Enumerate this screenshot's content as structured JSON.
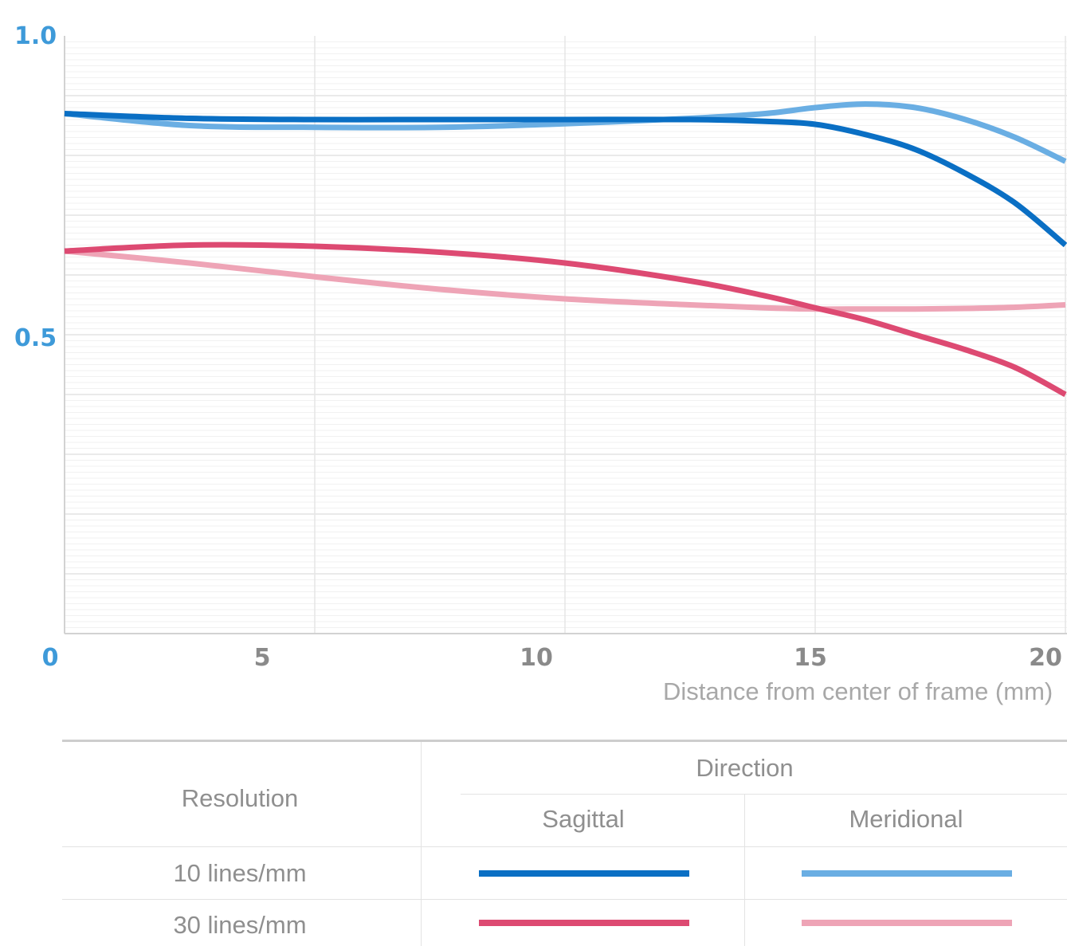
{
  "chart_data": {
    "type": "line",
    "title": "",
    "xlabel": "Distance from center of frame (mm)",
    "ylabel": "",
    "xlim": [
      0,
      20
    ],
    "ylim": [
      0,
      1.0
    ],
    "x_ticks": [
      "0",
      "5",
      "10",
      "15",
      "20"
    ],
    "y_ticks": [
      "0.5",
      "1.0"
    ],
    "x_tick_values": [
      0,
      5,
      10,
      15,
      20
    ],
    "y_tick_values": [
      0.5,
      1.0
    ],
    "grid": true,
    "series": [
      {
        "name": "10 lines/mm Sagittal",
        "color": "#0a6fc4",
        "x": [
          0,
          2.5,
          5,
          7.5,
          10,
          12.5,
          14,
          15,
          16,
          17,
          18,
          19,
          20
        ],
        "y": [
          0.87,
          0.862,
          0.86,
          0.86,
          0.86,
          0.86,
          0.857,
          0.852,
          0.835,
          0.81,
          0.77,
          0.72,
          0.65
        ]
      },
      {
        "name": "10 lines/mm Meridional",
        "color": "#6aaee3",
        "x": [
          0,
          2.5,
          5,
          7.5,
          10,
          12.5,
          14,
          15,
          16,
          17,
          18,
          19,
          20
        ],
        "y": [
          0.87,
          0.85,
          0.847,
          0.847,
          0.853,
          0.862,
          0.87,
          0.88,
          0.886,
          0.88,
          0.86,
          0.83,
          0.79
        ]
      },
      {
        "name": "30 lines/mm Sagittal",
        "color": "#dd4a72",
        "x": [
          0,
          2.5,
          5,
          7.5,
          10,
          12.5,
          14,
          15,
          16,
          17,
          18,
          19,
          20
        ],
        "y": [
          0.64,
          0.65,
          0.648,
          0.638,
          0.62,
          0.59,
          0.565,
          0.545,
          0.525,
          0.5,
          0.475,
          0.445,
          0.4
        ]
      },
      {
        "name": "30 lines/mm Meridional",
        "color": "#eea4b6",
        "x": [
          0,
          2.5,
          5,
          7.5,
          10,
          12.5,
          14,
          15,
          16,
          17,
          18,
          19,
          20
        ],
        "y": [
          0.64,
          0.62,
          0.597,
          0.576,
          0.56,
          0.55,
          0.545,
          0.543,
          0.543,
          0.543,
          0.544,
          0.546,
          0.55
        ]
      }
    ]
  },
  "legend": {
    "resolution_header": "Resolution",
    "direction_header": "Direction",
    "sagittal_header": "Sagittal",
    "meridional_header": "Meridional",
    "rows": [
      {
        "label": "10 lines/mm",
        "sagittal_color": "#0a6fc4",
        "meridional_color": "#6aaee3"
      },
      {
        "label": "30 lines/mm",
        "sagittal_color": "#dd4a72",
        "meridional_color": "#eea4b6"
      }
    ]
  }
}
